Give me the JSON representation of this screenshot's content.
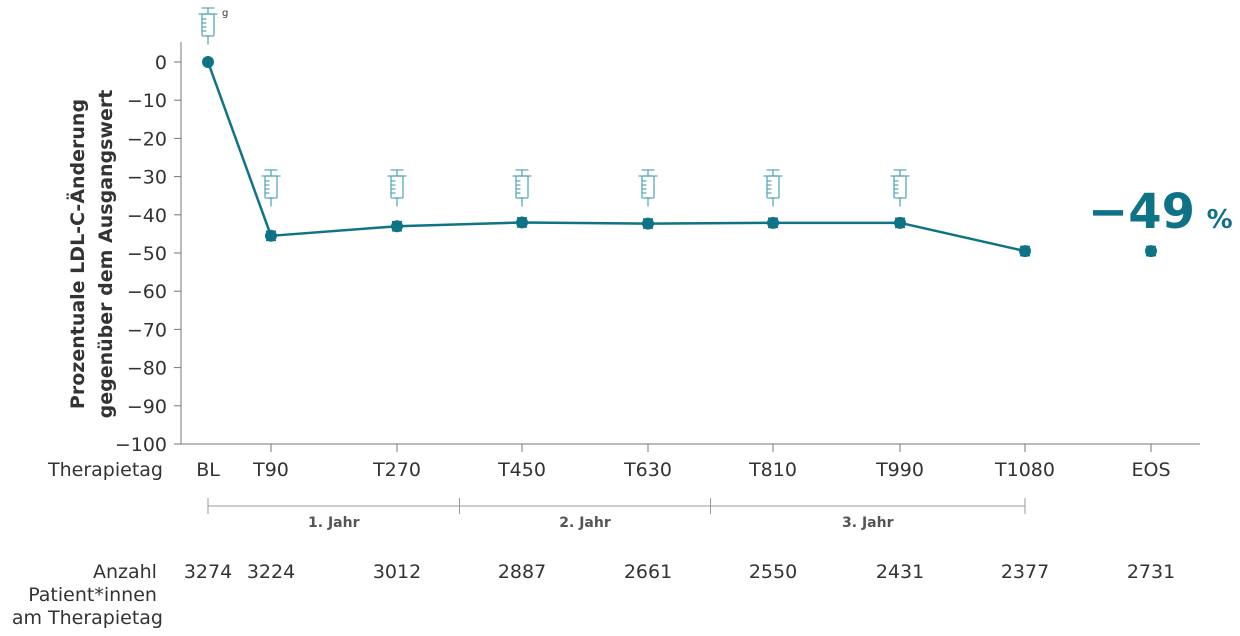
{
  "chart_data": {
    "type": "line",
    "ylabel_line1": "Prozentuale LDL-C-Änderung",
    "ylabel_line2": "gegenüber dem Ausgangswert",
    "ylim": [
      -100,
      0
    ],
    "yticks": [
      "0",
      "−10",
      "−20",
      "−30",
      "−40",
      "−50",
      "−60",
      "−70",
      "−80",
      "−90",
      "−100"
    ],
    "ytick_values": [
      0,
      -10,
      -20,
      -30,
      -40,
      -50,
      -60,
      -70,
      -80,
      -90,
      -100
    ],
    "x_row_label": "Therapietag",
    "categories": [
      "BL",
      "T90",
      "T270",
      "T450",
      "T630",
      "T810",
      "T990",
      "T1080",
      "EOS"
    ],
    "x_days": [
      0,
      90,
      270,
      450,
      630,
      810,
      990,
      1080,
      null
    ],
    "series": [
      {
        "values": [
          0,
          -45.5,
          -43,
          -42,
          -42.3,
          -42.1,
          -42.1,
          -49.5,
          -49.5
        ],
        "error": [
          0,
          1.2,
          1.2,
          1.2,
          1.2,
          1.2,
          1.2,
          1.2,
          1.2
        ],
        "connected": [
          true,
          true,
          true,
          true,
          true,
          true,
          true,
          true,
          false
        ]
      }
    ],
    "injection_markers_at": [
      "BL",
      "T90",
      "T270",
      "T450",
      "T630",
      "T810",
      "T990"
    ],
    "injection_footnote": "g",
    "annotation": {
      "number": "−49",
      "unit": "%"
    },
    "year_periods": [
      {
        "label": "1. Jahr",
        "from_day": 0,
        "to_day": 360
      },
      {
        "label": "2. Jahr",
        "from_day": 360,
        "to_day": 720
      },
      {
        "label": "3. Jahr",
        "from_day": 720,
        "to_day": 1080
      }
    ],
    "patient_counts_label": [
      "Anzahl",
      "Patient*innen",
      "am Therapietag"
    ],
    "patient_counts": [
      "3274",
      "3224",
      "3012",
      "2887",
      "2661",
      "2550",
      "2431",
      "2377",
      "2731"
    ]
  },
  "colors": {
    "line": "#0f7388",
    "syringe": "#5aaab8",
    "axis": "#777777",
    "text": "#333333"
  }
}
